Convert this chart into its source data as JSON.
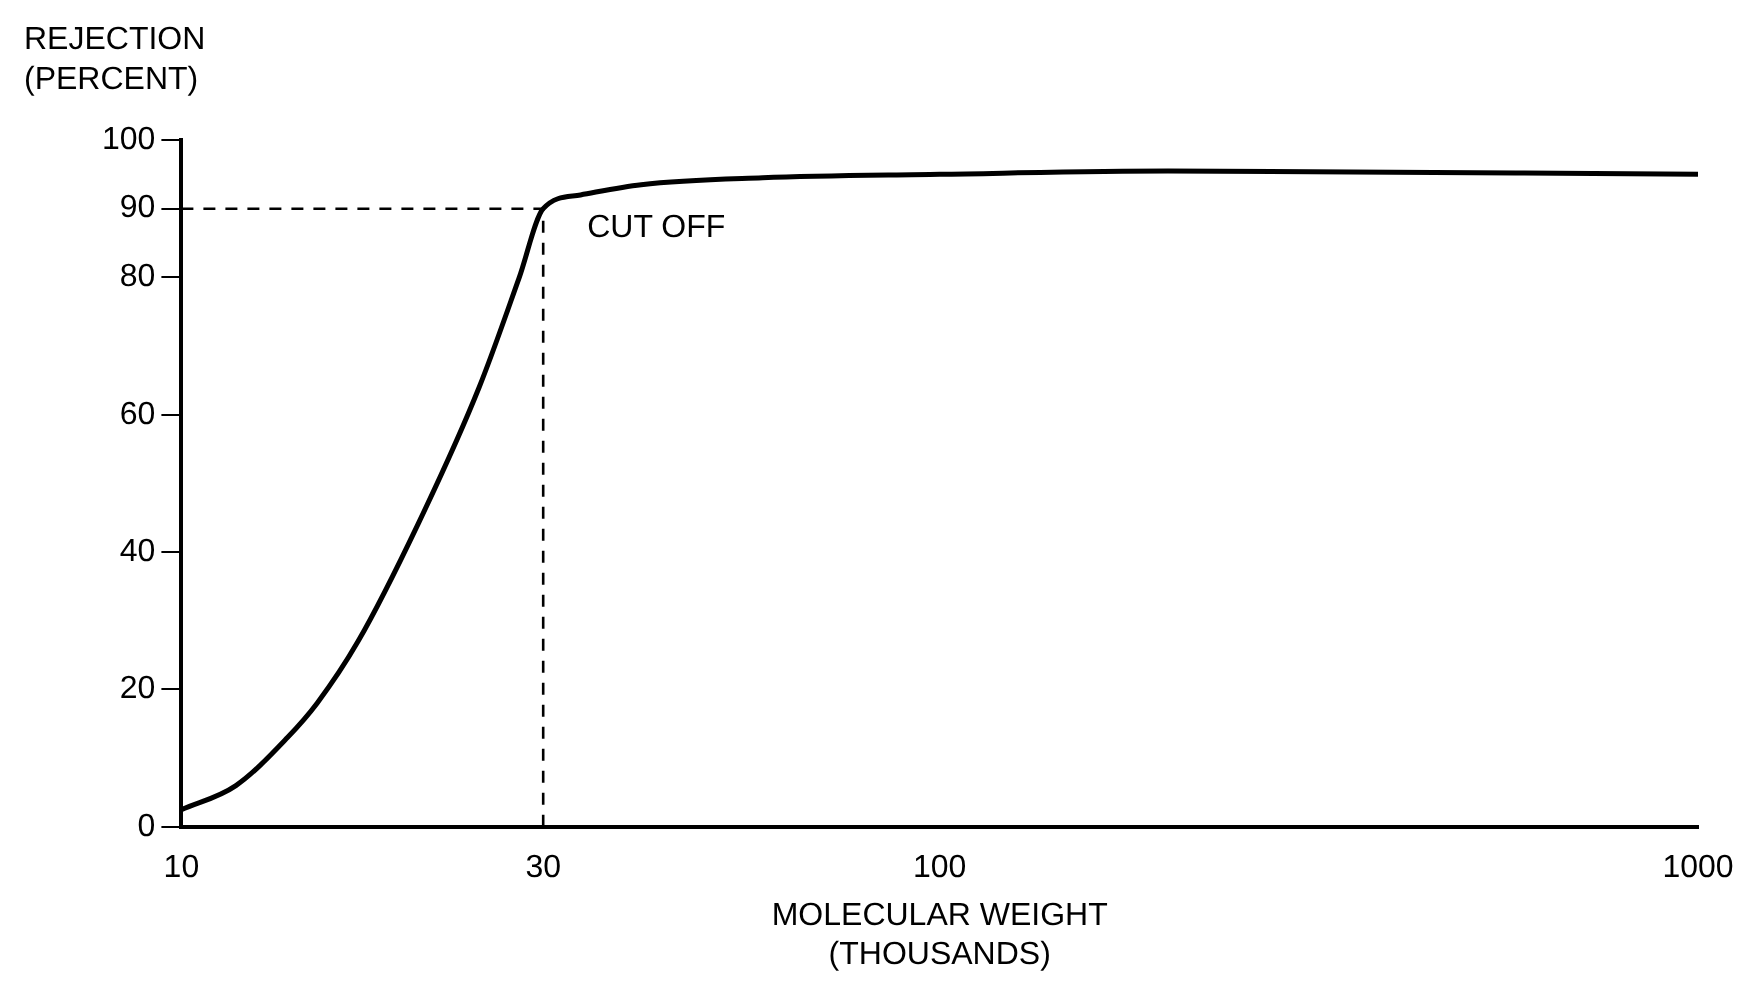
{
  "chart_data": {
    "type": "line",
    "ylabel": "REJECTION\n(PERCENT)",
    "xlabel": "MOLECULAR WEIGHT\n(THOUSANDS)",
    "log": "x",
    "x": [
      10,
      11.8,
      13.8,
      15.1,
      17.1,
      20.5,
      24.7,
      27.9,
      30,
      33.6,
      40.4,
      58.4,
      100,
      200,
      1000
    ],
    "series": [
      {
        "color": "#000000",
        "values": [
          2.5,
          6,
          13,
          18,
          27,
          44,
          64,
          80,
          90,
          92,
          93.5,
          94.5,
          95,
          95.5,
          95
        ]
      }
    ],
    "xlim": [
      10,
      1000
    ],
    "xticks": [
      10,
      30,
      100,
      1000
    ],
    "ylim": [
      0,
      100
    ],
    "yticks": [
      0,
      20,
      40,
      60,
      80,
      90,
      100
    ],
    "grid": false,
    "legend": false,
    "marker": "none",
    "line_style": "solid",
    "ref_lines": [
      {
        "axis": "y",
        "value": 90,
        "line_style": "dashed",
        "color": "#000000"
      },
      {
        "axis": "x",
        "value": 30,
        "line_style": "dashed",
        "color": "#000000"
      }
    ],
    "annotations": [
      {
        "text": "CUT OFF",
        "x": 30,
        "y": 90
      }
    ]
  }
}
